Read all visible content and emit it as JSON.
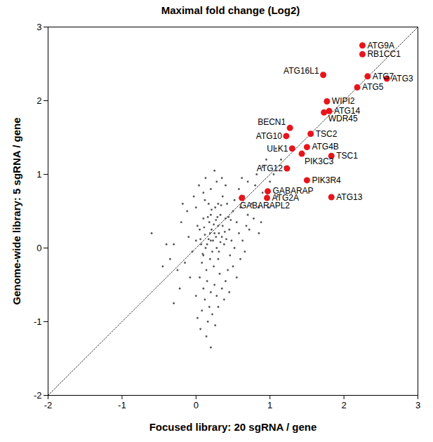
{
  "chart_data": {
    "type": "scatter",
    "title": "Maximal fold change (Log2)",
    "x_label": "Focused library: 20 sgRNA / gene",
    "y_label": "Genome-wide library: 5 sgRNA / gene",
    "xlim": [
      -2,
      3
    ],
    "ylim": [
      -2,
      3
    ],
    "xticks": [
      -2,
      -1,
      0,
      1,
      2,
      3
    ],
    "yticks": [
      -2,
      -1,
      0,
      1,
      2,
      3
    ],
    "grid": false,
    "highlighted": {
      "color": "#e8141b",
      "labels": [
        "ATG9A",
        "RB1CC1",
        "ATG16L1",
        "ATG7",
        "ATG3",
        "ATG5",
        "WIPI2",
        "ATG14",
        "WDR45",
        "BECN1",
        "TSC2",
        "ATG10",
        "ATG4B",
        "ULK1",
        "PIK3C3",
        "TSC1",
        "ATG12",
        "PIK3R4",
        "GABARAP",
        "ATG2A",
        "GABARAPL2",
        "ATG13"
      ],
      "x": [
        2.25,
        2.25,
        1.72,
        2.32,
        2.58,
        2.18,
        1.77,
        1.8,
        1.73,
        1.27,
        1.55,
        1.22,
        1.5,
        1.3,
        1.43,
        1.83,
        1.23,
        1.5,
        0.97,
        0.96,
        0.62,
        1.83
      ],
      "y": [
        2.75,
        2.63,
        2.35,
        2.33,
        2.3,
        2.18,
        1.99,
        1.86,
        1.84,
        1.63,
        1.55,
        1.52,
        1.37,
        1.35,
        1.28,
        1.25,
        1.08,
        0.92,
        0.77,
        0.68,
        0.68,
        0.69
      ]
    },
    "background": {
      "color": "#555555",
      "x": [
        0.2,
        0.25,
        0.15,
        0.3,
        0.1,
        0.35,
        0.05,
        0.22,
        0.4,
        0.18,
        0.28,
        0.12,
        0.33,
        0.08,
        0.45,
        0.0,
        -0.05,
        0.5,
        0.26,
        0.14,
        0.38,
        0.2,
        0.3,
        0.42,
        0.02,
        -0.1,
        0.55,
        0.17,
        0.24,
        0.36,
        0.1,
        0.6,
        0.48,
        -0.15,
        0.21,
        0.31,
        0.07,
        0.19,
        0.44,
        0.27,
        0.65,
        0.7,
        0.58,
        0.75,
        0.52,
        0.8,
        0.68,
        0.85,
        0.62,
        0.9,
        0.15,
        0.25,
        0.05,
        0.32,
        0.2,
        0.12,
        0.28,
        0.1,
        0.35,
        0.18,
        0.22,
        0.3,
        0.08,
        0.16,
        0.26,
        0.2,
        0.06,
        0.02,
        0.38,
        0.14,
        -0.2,
        -0.25,
        -0.3,
        -0.12,
        -0.08,
        -0.35,
        -0.45,
        -0.4,
        -0.18,
        -0.22,
        0.0,
        -0.03,
        0.1,
        0.04,
        0.2,
        0.28,
        0.35,
        0.13,
        0.25,
        0.4,
        0.46,
        0.52,
        0.58,
        0.63,
        0.72,
        0.5,
        0.43,
        0.66,
        0.78,
        0.55,
        0.9,
        1.0,
        0.95,
        0.82,
        1.05,
        1.08,
        0.98,
        1.1,
        0.88,
        1.15,
        0.3,
        0.23,
        0.17,
        0.33,
        0.11,
        0.29,
        0.39,
        0.06,
        0.24,
        0.36,
        0.19,
        0.27,
        0.13,
        0.31,
        0.09,
        0.41,
        0.21,
        0.34,
        0.47,
        0.16,
        -0.6,
        -0.3,
        0.0,
        0.45,
        0.6,
        0.12,
        0.4,
        0.7,
        0.85,
        1.2
      ],
      "y": [
        0.1,
        0.2,
        0.05,
        0.3,
        -0.1,
        0.15,
        0.25,
        -0.05,
        0.4,
        0.35,
        0.0,
        0.18,
        0.45,
        -0.2,
        0.25,
        0.1,
        -0.05,
        0.5,
        0.55,
        -0.3,
        0.05,
        0.45,
        -0.15,
        0.6,
        0.3,
        0.15,
        0.35,
        0.6,
        -0.25,
        0.7,
        0.4,
        0.55,
        0.1,
        -0.2,
        0.25,
        0.2,
        0.05,
        -0.15,
        0.42,
        0.38,
        0.7,
        0.45,
        0.8,
        0.6,
        0.65,
        0.85,
        0.3,
        0.55,
        0.95,
        0.75,
        -0.45,
        -0.5,
        -0.4,
        -0.35,
        -0.6,
        -0.7,
        -0.65,
        -0.55,
        -0.55,
        -0.8,
        -0.9,
        -0.8,
        -0.85,
        -1.0,
        -1.05,
        -1.35,
        -1.1,
        -0.95,
        -0.7,
        -1.2,
        0.35,
        -0.3,
        0.05,
        0.5,
        -0.4,
        -0.15,
        -0.25,
        0.05,
        0.6,
        -0.55,
        0.55,
        0.7,
        0.75,
        0.85,
        0.8,
        0.9,
        0.95,
        0.95,
        1.05,
        0.85,
        -0.1,
        0.0,
        0.2,
        0.1,
        0.25,
        -0.25,
        -0.3,
        -0.05,
        0.4,
        -0.4,
        1.1,
        0.9,
        1.2,
        1.0,
        1.0,
        1.35,
        0.55,
        0.7,
        0.35,
        1.2,
        0.6,
        0.1,
        0.12,
        0.08,
        0.28,
        0.42,
        0.22,
        0.12,
        0.32,
        0.3,
        0.2,
        0.15,
        0.0,
        -0.05,
        -0.08,
        0.12,
        0.52,
        0.58,
        0.38,
        0.42,
        0.2,
        -0.75,
        -0.65,
        -0.6,
        -0.15,
        0.65,
        -0.45,
        0.9,
        0.2,
        1.1
      ]
    }
  }
}
